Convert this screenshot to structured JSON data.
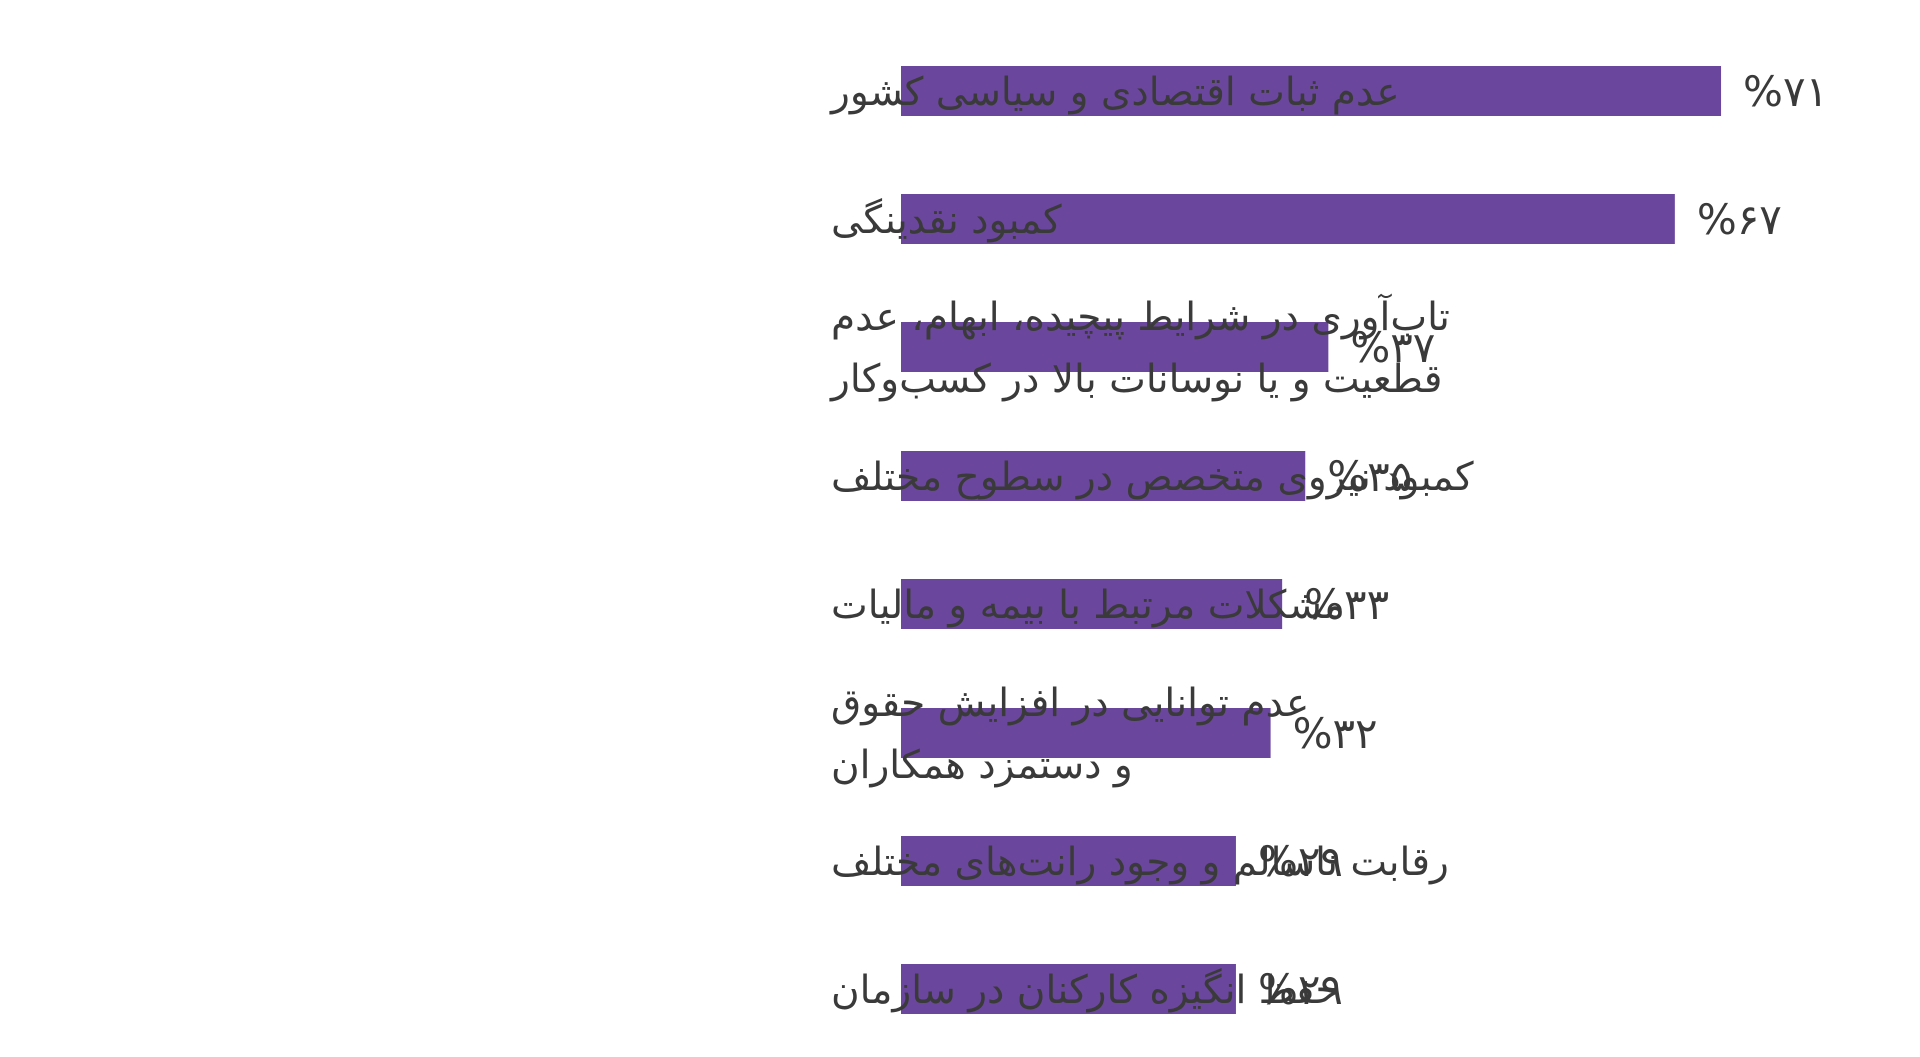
{
  "chart_data": {
    "type": "bar",
    "orientation": "horizontal",
    "categories": [
      [
        "عدم ثبات اقتصادی و سیاسی کشور"
      ],
      [
        "کمبود نقدینگی"
      ],
      [
        "تاب‌آوری در شرایط پیچیده، ابهام، عدم",
        "قطعیت و یا نوسانات بالا در کسب‌وکار"
      ],
      [
        "کمبود نیروی متخصص در سطوح مختلف"
      ],
      [
        "مشکلات مرتبط با بیمه و مالیات"
      ],
      [
        "عدم توانایی در افزایش حقوق",
        "و دستمزد همکاران"
      ],
      [
        "رقابت ناسالم و وجود رانت‌های مختلف"
      ],
      [
        "حفظ انگیزه کارکنان در سازمان"
      ]
    ],
    "values": [
      71,
      67,
      37,
      35,
      33,
      32,
      29,
      29
    ],
    "value_labels": [
      "%۷۱",
      "%۶۷",
      "%۳۷",
      "%۳۵",
      "%۳۳",
      "%۳۲",
      "%۲۹",
      "%۲۹"
    ],
    "bar_color": "#6a479c",
    "grid": false,
    "legend": "none"
  }
}
